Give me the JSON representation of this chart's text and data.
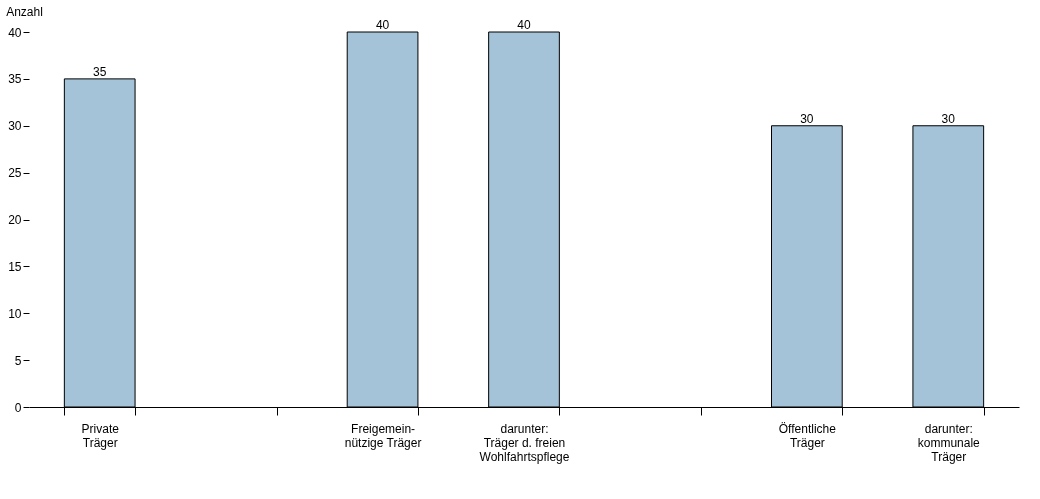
{
  "chart_data": {
    "type": "bar",
    "ylabel": "Anzahl",
    "categories": [
      "Private\nTräger",
      null,
      "Freigemein-\nnützige Träger",
      "darunter:\nTräger d. freien\nWohlfahrtspflege",
      null,
      "Öffentliche\nTräger",
      "darunter:\nkommunale\nTräger"
    ],
    "values": [
      35,
      null,
      40,
      40,
      null,
      30,
      30
    ],
    "color": "#a4c2d8",
    "ylim": [
      0,
      40
    ],
    "yticks": [
      0,
      5,
      10,
      15,
      20,
      25,
      30,
      35,
      40
    ],
    "grid": false,
    "data_labels": true
  }
}
